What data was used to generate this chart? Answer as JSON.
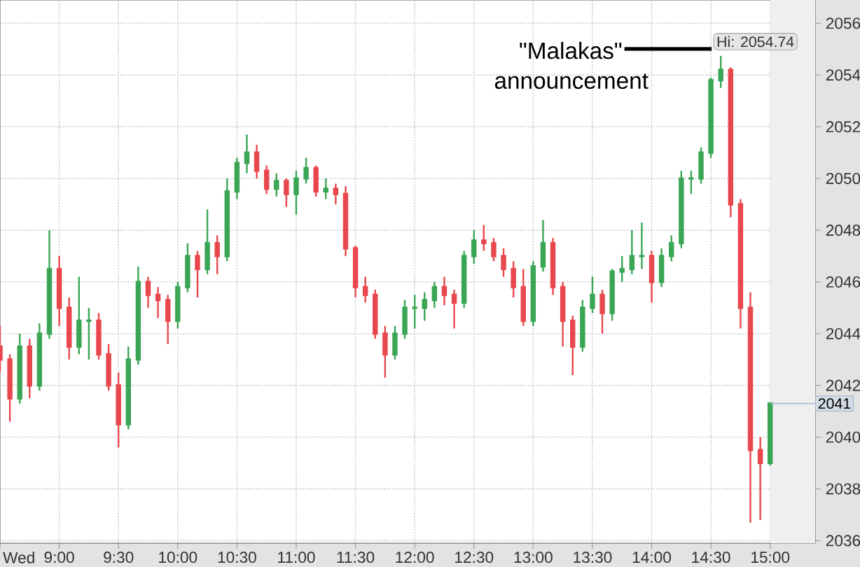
{
  "chart_data": {
    "type": "candlestick",
    "x": [
      8.5,
      8.5833,
      8.6667,
      8.75,
      8.8333,
      8.9167,
      9,
      9.0833,
      9.1667,
      9.25,
      9.3333,
      9.4167,
      9.5,
      9.5833,
      9.6667,
      9.75,
      9.8333,
      9.9167,
      10,
      10.0833,
      10.1667,
      10.25,
      10.3333,
      10.4167,
      10.5,
      10.5833,
      10.6667,
      10.75,
      10.8333,
      10.9167,
      11,
      11.0833,
      11.1667,
      11.25,
      11.3333,
      11.4167,
      11.5,
      11.5833,
      11.6667,
      11.75,
      11.8333,
      11.9167,
      12,
      12.0833,
      12.1667,
      12.25,
      12.3333,
      12.4167,
      12.5,
      12.5833,
      12.6667,
      12.75,
      12.8333,
      12.9167,
      13,
      13.0833,
      13.1667,
      13.25,
      13.3333,
      13.4167,
      13.5,
      13.5833,
      13.6667,
      13.75,
      13.8333,
      13.9167,
      14,
      14.0833,
      14.1667,
      14.25,
      14.3333,
      14.4167,
      14.5,
      14.5833,
      14.6667,
      14.75,
      14.8333,
      14.9167,
      15
    ],
    "ohlc": [
      [
        2043.5,
        2044.3,
        2042.5,
        2043.0
      ],
      [
        2043.0,
        2043.2,
        2040.6,
        2041.5
      ],
      [
        2041.5,
        2044.0,
        2041.3,
        2043.5
      ],
      [
        2043.5,
        2043.8,
        2041.5,
        2042.0
      ],
      [
        2042.0,
        2044.4,
        2041.8,
        2044.0
      ],
      [
        2044.0,
        2048.0,
        2043.8,
        2046.5
      ],
      [
        2046.5,
        2047.0,
        2044.3,
        2045.0
      ],
      [
        2045.0,
        2045.4,
        2043.0,
        2043.5
      ],
      [
        2043.5,
        2046.2,
        2043.2,
        2044.5
      ],
      [
        2044.5,
        2045.0,
        2043.0,
        2044.5
      ],
      [
        2044.5,
        2044.8,
        2043.0,
        2043.2
      ],
      [
        2043.2,
        2043.6,
        2041.8,
        2042.0
      ],
      [
        2042.0,
        2042.5,
        2039.6,
        2040.5
      ],
      [
        2040.5,
        2043.5,
        2040.3,
        2043.0
      ],
      [
        2043.0,
        2046.6,
        2042.8,
        2046.0
      ],
      [
        2046.0,
        2046.2,
        2045.0,
        2045.5
      ],
      [
        2045.5,
        2045.8,
        2044.6,
        2045.3
      ],
      [
        2045.3,
        2045.5,
        2043.6,
        2044.5
      ],
      [
        2044.5,
        2046.0,
        2044.2,
        2045.8
      ],
      [
        2045.8,
        2047.5,
        2045.6,
        2047.0
      ],
      [
        2047.0,
        2047.2,
        2045.4,
        2046.5
      ],
      [
        2046.5,
        2048.8,
        2046.3,
        2047.5
      ],
      [
        2047.5,
        2047.8,
        2046.3,
        2047.0
      ],
      [
        2047.0,
        2050.0,
        2046.8,
        2049.5
      ],
      [
        2049.5,
        2050.8,
        2049.2,
        2050.6
      ],
      [
        2050.6,
        2051.7,
        2050.2,
        2051.0
      ],
      [
        2051.0,
        2051.3,
        2050.0,
        2050.3
      ],
      [
        2050.3,
        2050.5,
        2049.4,
        2049.6
      ],
      [
        2049.6,
        2050.2,
        2049.3,
        2049.9
      ],
      [
        2049.9,
        2050.0,
        2048.9,
        2049.4
      ],
      [
        2049.4,
        2050.3,
        2048.6,
        2050.0
      ],
      [
        2050.0,
        2050.8,
        2049.8,
        2050.4
      ],
      [
        2050.4,
        2050.5,
        2049.3,
        2049.5
      ],
      [
        2049.5,
        2050.0,
        2049.2,
        2049.6
      ],
      [
        2049.6,
        2049.8,
        2049.0,
        2049.4
      ],
      [
        2049.4,
        2049.7,
        2047.0,
        2047.3
      ],
      [
        2047.3,
        2047.4,
        2045.4,
        2045.8
      ],
      [
        2045.8,
        2046.2,
        2045.2,
        2045.5
      ],
      [
        2045.5,
        2045.7,
        2043.8,
        2044.0
      ],
      [
        2044.0,
        2044.3,
        2042.3,
        2043.2
      ],
      [
        2043.2,
        2044.3,
        2043.0,
        2044.0
      ],
      [
        2044.0,
        2045.3,
        2043.8,
        2045.0
      ],
      [
        2045.0,
        2045.5,
        2044.2,
        2045.0
      ],
      [
        2045.0,
        2045.6,
        2044.5,
        2045.3
      ],
      [
        2045.3,
        2046.0,
        2045.0,
        2045.8
      ],
      [
        2045.8,
        2046.2,
        2045.1,
        2045.5
      ],
      [
        2045.5,
        2045.7,
        2044.2,
        2045.2
      ],
      [
        2045.2,
        2047.2,
        2045.0,
        2047.0
      ],
      [
        2047.0,
        2048.0,
        2046.7,
        2047.6
      ],
      [
        2047.6,
        2048.2,
        2047.2,
        2047.5
      ],
      [
        2047.5,
        2047.7,
        2046.8,
        2047.0
      ],
      [
        2047.0,
        2047.3,
        2046.2,
        2046.5
      ],
      [
        2046.5,
        2046.8,
        2045.4,
        2045.8
      ],
      [
        2045.8,
        2046.5,
        2044.3,
        2044.5
      ],
      [
        2044.5,
        2046.8,
        2044.3,
        2046.6
      ],
      [
        2046.6,
        2048.4,
        2046.4,
        2047.5
      ],
      [
        2047.5,
        2047.7,
        2045.5,
        2045.8
      ],
      [
        2045.8,
        2046.0,
        2043.5,
        2044.5
      ],
      [
        2044.5,
        2044.7,
        2042.4,
        2043.5
      ],
      [
        2043.5,
        2045.3,
        2043.3,
        2045.0
      ],
      [
        2045.0,
        2046.2,
        2044.8,
        2045.5
      ],
      [
        2045.5,
        2045.7,
        2044.0,
        2044.8
      ],
      [
        2044.8,
        2046.5,
        2044.5,
        2046.4
      ],
      [
        2046.4,
        2047.0,
        2046.0,
        2046.5
      ],
      [
        2046.5,
        2048.0,
        2046.3,
        2047.0
      ],
      [
        2047.0,
        2048.3,
        2046.5,
        2047.0
      ],
      [
        2047.0,
        2047.2,
        2045.2,
        2046.0
      ],
      [
        2046.0,
        2047.3,
        2045.8,
        2047.0
      ],
      [
        2047.0,
        2047.8,
        2046.8,
        2047.5
      ],
      [
        2047.5,
        2050.3,
        2047.3,
        2050.0
      ],
      [
        2050.0,
        2050.3,
        2049.4,
        2050.0
      ],
      [
        2050.0,
        2051.2,
        2049.8,
        2051.0
      ],
      [
        2051.0,
        2053.9,
        2050.8,
        2053.8
      ],
      [
        2053.8,
        2054.74,
        2053.5,
        2054.2
      ],
      [
        2054.2,
        2054.3,
        2048.5,
        2049.0
      ],
      [
        2049.0,
        2049.2,
        2044.2,
        2045.0
      ],
      [
        2045.0,
        2045.6,
        2036.7,
        2039.5
      ],
      [
        2039.5,
        2040.0,
        2036.8,
        2039.0
      ],
      [
        2039.0,
        2041.3,
        2038.9,
        2041.3
      ]
    ],
    "colors": [
      "#e8474c",
      "#e8474c",
      "#3aa655",
      "#e8474c",
      "#3aa655",
      "#3aa655",
      "#e8474c",
      "#e8474c",
      "#3aa655",
      "#3aa655",
      "#e8474c",
      "#e8474c",
      "#e8474c",
      "#3aa655",
      "#3aa655",
      "#e8474c",
      "#e8474c",
      "#e8474c",
      "#3aa655",
      "#3aa655",
      "#e8474c",
      "#3aa655",
      "#e8474c",
      "#3aa655",
      "#3aa655",
      "#3aa655",
      "#e8474c",
      "#e8474c",
      "#3aa655",
      "#e8474c",
      "#3aa655",
      "#3aa655",
      "#e8474c",
      "#3aa655",
      "#e8474c",
      "#e8474c",
      "#e8474c",
      "#e8474c",
      "#e8474c",
      "#e8474c",
      "#3aa655",
      "#3aa655",
      "#3aa655",
      "#3aa655",
      "#3aa655",
      "#e8474c",
      "#e8474c",
      "#3aa655",
      "#3aa655",
      "#e8474c",
      "#e8474c",
      "#e8474c",
      "#e8474c",
      "#e8474c",
      "#3aa655",
      "#3aa655",
      "#e8474c",
      "#e8474c",
      "#e8474c",
      "#3aa655",
      "#3aa655",
      "#e8474c",
      "#3aa655",
      "#3aa655",
      "#3aa655",
      "#3aa655",
      "#e8474c",
      "#3aa655",
      "#3aa655",
      "#3aa655",
      "#3aa655",
      "#3aa655",
      "#3aa655",
      "#3aa655",
      "#e8474c",
      "#e8474c",
      "#e8474c",
      "#e8474c",
      "#3aa655"
    ],
    "xlim": [
      8.5,
      15.38
    ],
    "ylim": [
      2035.9,
      2056.9
    ],
    "xticks": [
      {
        "value": 8.5,
        "label": "Wed"
      },
      {
        "value": 9,
        "label": "9:00"
      },
      {
        "value": 9.5,
        "label": "9:30"
      },
      {
        "value": 10,
        "label": "10:00"
      },
      {
        "value": 10.5,
        "label": "10:30"
      },
      {
        "value": 11,
        "label": "11:00"
      },
      {
        "value": 11.5,
        "label": "11:30"
      },
      {
        "value": 12,
        "label": "12:00"
      },
      {
        "value": 12.5,
        "label": "12:30"
      },
      {
        "value": 13,
        "label": "13:00"
      },
      {
        "value": 13.5,
        "label": "13:30"
      },
      {
        "value": 14,
        "label": "14:00"
      },
      {
        "value": 14.5,
        "label": "14:30"
      },
      {
        "value": 15,
        "label": "15:00"
      }
    ],
    "yticks": [
      2036,
      2038,
      2040,
      2042,
      2044,
      2046,
      2048,
      2050,
      2052,
      2054,
      2056
    ],
    "grid": true,
    "annotations": [
      "\"Malakas\" announcement",
      {
        "text": "Hi: 2054.74",
        "x": 14.5833,
        "y": 2054.74
      }
    ],
    "ref_lines": [
      {
        "axis": "y",
        "value": 2041.3,
        "label": "2041",
        "color": "#9fb3c8"
      }
    ],
    "bands": [
      {
        "axis": "x",
        "from": 15,
        "to": 15.38,
        "color": "#efefef"
      }
    ]
  }
}
